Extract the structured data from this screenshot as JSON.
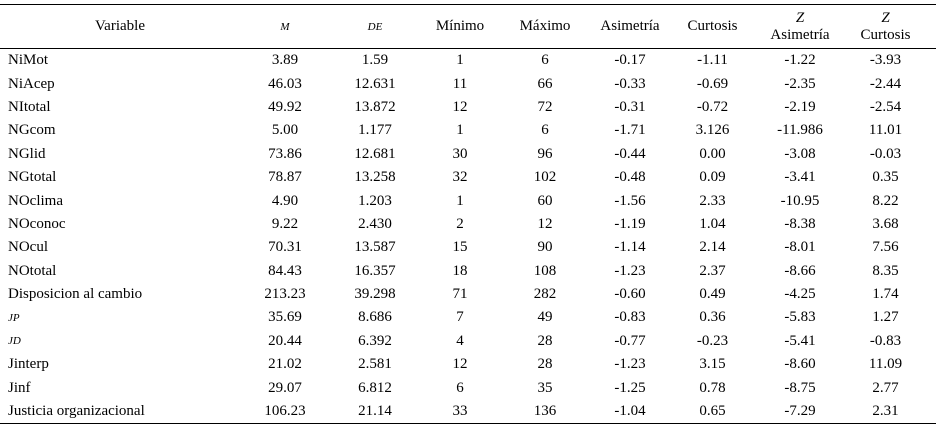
{
  "table": {
    "header": [
      [
        "Variable"
      ],
      [
        "M"
      ],
      [
        "DE"
      ],
      [
        "Mínimo"
      ],
      [
        "Máximo"
      ],
      [
        "Asimetría"
      ],
      [
        "Curtosis"
      ],
      [
        "Z",
        "Asimetría"
      ],
      [
        "Z",
        "Curtosis"
      ]
    ],
    "rows": [
      [
        "NiMot",
        "3.89",
        "1.59",
        "1",
        "6",
        "-0.17",
        "-1.11",
        "-1.22",
        "-3.93"
      ],
      [
        "NiAcep",
        "46.03",
        "12.631",
        "11",
        "66",
        "-0.33",
        "-0.69",
        "-2.35",
        "-2.44"
      ],
      [
        "NItotal",
        "49.92",
        "13.872",
        "12",
        "72",
        "-0.31",
        "-0.72",
        "-2.19",
        "-2.54"
      ],
      [
        "NGcom",
        "5.00",
        "1.177",
        "1",
        "6",
        "-1.71",
        "3.126",
        "-11.986",
        "11.01"
      ],
      [
        "NGlid",
        "73.86",
        "12.681",
        "30",
        "96",
        "-0.44",
        "0.00",
        "-3.08",
        "-0.03"
      ],
      [
        "NGtotal",
        "78.87",
        "13.258",
        "32",
        "102",
        "-0.48",
        "0.09",
        "-3.41",
        "0.35"
      ],
      [
        "NOclima",
        "4.90",
        "1.203",
        "1",
        "60",
        "-1.56",
        "2.33",
        "-10.95",
        "8.22"
      ],
      [
        "NOconoc",
        "9.22",
        "2.430",
        "2",
        "12",
        "-1.19",
        "1.04",
        "-8.38",
        "3.68"
      ],
      [
        "NOcul",
        "70.31",
        "13.587",
        "15",
        "90",
        "-1.14",
        "2.14",
        "-8.01",
        "7.56"
      ],
      [
        "NOtotal",
        "84.43",
        "16.357",
        "18",
        "108",
        "-1.23",
        "2.37",
        "-8.66",
        "8.35"
      ],
      [
        "Disposicion al cambio",
        "213.23",
        "39.298",
        "71",
        "282",
        "-0.60",
        "0.49",
        "-4.25",
        "1.74"
      ],
      [
        "JP",
        "35.69",
        "8.686",
        "7",
        "49",
        "-0.83",
        "0.36",
        "-5.83",
        "1.27"
      ],
      [
        "JD",
        "20.44",
        "6.392",
        "4",
        "28",
        "-0.77",
        "-0.23",
        "-5.41",
        "-0.83"
      ],
      [
        "Jinterp",
        "21.02",
        "2.581",
        "12",
        "28",
        "-1.23",
        "3.15",
        "-8.60",
        "11.09"
      ],
      [
        "Jinf",
        "29.07",
        "6.812",
        "6",
        "35",
        "-1.25",
        "0.78",
        "-8.75",
        "2.77"
      ],
      [
        "Justicia organizacional",
        "106.23",
        "21.14",
        "33",
        "136",
        "-1.04",
        "0.65",
        "-7.29",
        "2.31"
      ]
    ]
  }
}
